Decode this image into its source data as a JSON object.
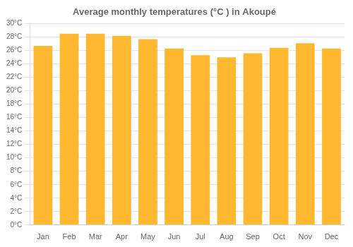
{
  "chart_data": {
    "type": "bar",
    "title": "Average monthly temperatures (°C ) in Akoupé",
    "categories": [
      "Jan",
      "Feb",
      "Mar",
      "Apr",
      "May",
      "Jun",
      "Jul",
      "Aug",
      "Sep",
      "Oct",
      "Nov",
      "Dec"
    ],
    "values": [
      26.7,
      28.5,
      28.5,
      28.2,
      27.7,
      26.3,
      25.3,
      25.0,
      25.6,
      26.4,
      27.1,
      26.3
    ],
    "color": "#FFB830",
    "ylim": [
      0,
      30
    ],
    "yticks": [
      {
        "value": 0,
        "label": "0°C"
      },
      {
        "value": 2,
        "label": "2°C"
      },
      {
        "value": 4,
        "label": "4°C"
      },
      {
        "value": 6,
        "label": "6°C"
      },
      {
        "value": 8,
        "label": "8°C"
      },
      {
        "value": 10,
        "label": "10°C"
      },
      {
        "value": 12,
        "label": "12°C"
      },
      {
        "value": 14,
        "label": "14°C"
      },
      {
        "value": 16,
        "label": "16°C"
      },
      {
        "value": 18,
        "label": "18°C"
      },
      {
        "value": 20,
        "label": "20°C"
      },
      {
        "value": 22,
        "label": "22°C"
      },
      {
        "value": 24,
        "label": "24°C"
      },
      {
        "value": 26,
        "label": "26°C"
      },
      {
        "value": 28,
        "label": "28°C"
      },
      {
        "value": 30,
        "label": "30°C"
      }
    ],
    "grid": true
  }
}
